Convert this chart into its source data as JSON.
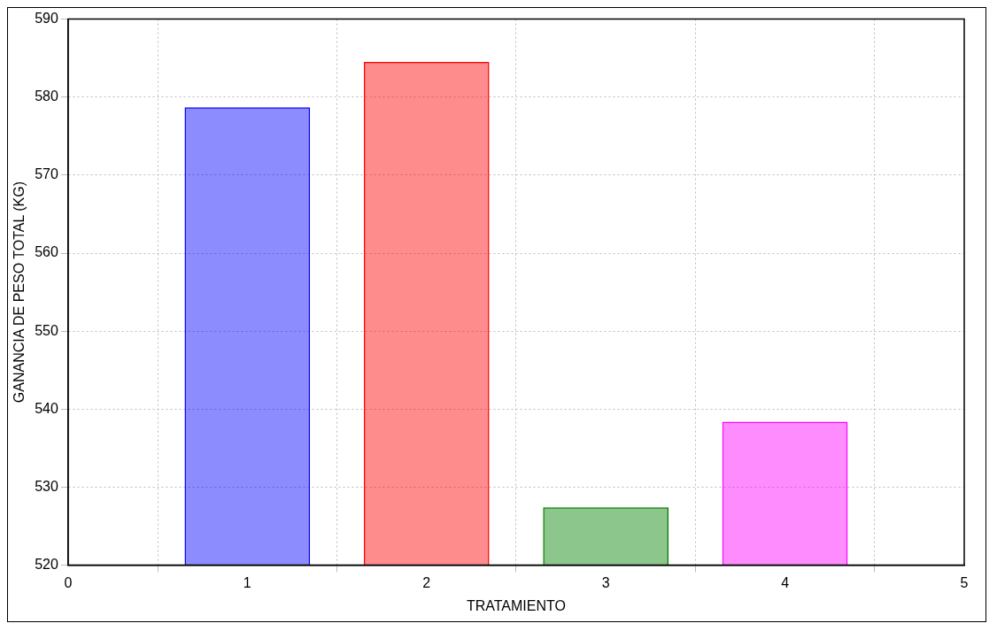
{
  "chart_data": {
    "type": "bar",
    "xlabel": "TRATAMIENTO",
    "ylabel": "GANANCIA DE PESO TOTAL (KG)",
    "x": [
      1,
      2,
      3,
      4
    ],
    "values": [
      578.7,
      584.5,
      527.4,
      538.4
    ],
    "colors": [
      "#0000ff",
      "#ff0000",
      "#008000",
      "#ff00ff"
    ],
    "xlim": [
      0,
      5
    ],
    "xticks": [
      0,
      1,
      2,
      3,
      4,
      5
    ],
    "ylim": [
      520,
      590
    ],
    "yticks": [
      520,
      530,
      540,
      550,
      560,
      570,
      580,
      590
    ],
    "grid": true,
    "legend": false
  }
}
